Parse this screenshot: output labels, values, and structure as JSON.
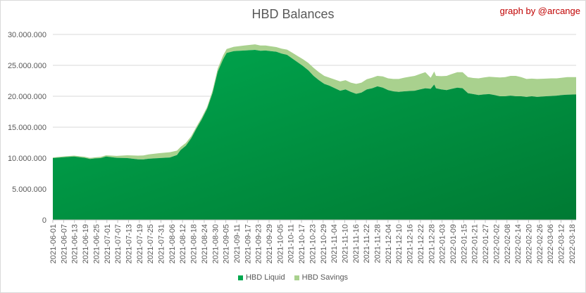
{
  "chart_data": {
    "type": "area",
    "stacked": true,
    "title": "HBD Balances",
    "credit": "graph by @arcange",
    "xlabel": "",
    "ylabel": "",
    "ylim": [
      0,
      30000000
    ],
    "y_ticks": [
      0,
      5000000,
      10000000,
      15000000,
      20000000,
      25000000,
      30000000
    ],
    "y_tick_labels": [
      "0",
      "5.000.000",
      "10.000.000",
      "15.000.000",
      "20.000.000",
      "25.000.000",
      "30.000.000"
    ],
    "x_start": "2021-06-01",
    "x_end": "2022-03-23",
    "x_tick_labels": [
      "2021-06-01",
      "2021-06-07",
      "2021-06-13",
      "2021-06-19",
      "2021-06-25",
      "2021-07-01",
      "2021-07-07",
      "2021-07-13",
      "2021-07-19",
      "2021-07-25",
      "2021-07-31",
      "2021-08-06",
      "2021-08-12",
      "2021-08-18",
      "2021-08-24",
      "2021-08-30",
      "2021-09-05",
      "2021-09-11",
      "2021-09-17",
      "2021-09-23",
      "2021-09-29",
      "2021-10-05",
      "2021-10-11",
      "2021-10-17",
      "2021-10-23",
      "2021-10-29",
      "2021-11-04",
      "2021-11-10",
      "2021-11-16",
      "2021-11-22",
      "2021-11-28",
      "2021-12-04",
      "2021-12-10",
      "2021-12-16",
      "2021-12-22",
      "2021-12-28",
      "2022-01-03",
      "2022-01-09",
      "2022-01-15",
      "2022-01-21",
      "2022-01-27",
      "2022-02-02",
      "2022-02-08",
      "2022-02-14",
      "2022-02-20",
      "2022-02-26",
      "2022-03-06",
      "2022-03-12",
      "2022-03-18"
    ],
    "grid": true,
    "legend_position": "bottom",
    "series": [
      {
        "name": "HBD Liquid",
        "color": "#00a84f",
        "color_dark": "#007a33",
        "points": [
          [
            "2021-06-01",
            10000000
          ],
          [
            "2021-06-07",
            10150000
          ],
          [
            "2021-06-13",
            10250000
          ],
          [
            "2021-06-19",
            10050000
          ],
          [
            "2021-06-22",
            9850000
          ],
          [
            "2021-06-25",
            9950000
          ],
          [
            "2021-06-28",
            10000000
          ],
          [
            "2021-07-01",
            10250000
          ],
          [
            "2021-07-07",
            10050000
          ],
          [
            "2021-07-13",
            10000000
          ],
          [
            "2021-07-19",
            9800000
          ],
          [
            "2021-07-22",
            9780000
          ],
          [
            "2021-07-25",
            9900000
          ],
          [
            "2021-07-31",
            10000000
          ],
          [
            "2021-08-06",
            10100000
          ],
          [
            "2021-08-10",
            10500000
          ],
          [
            "2021-08-12",
            11300000
          ],
          [
            "2021-08-15",
            12000000
          ],
          [
            "2021-08-18",
            13200000
          ],
          [
            "2021-08-21",
            14800000
          ],
          [
            "2021-08-24",
            16300000
          ],
          [
            "2021-08-27",
            18000000
          ],
          [
            "2021-08-30",
            20500000
          ],
          [
            "2021-09-02",
            24000000
          ],
          [
            "2021-09-05",
            26000000
          ],
          [
            "2021-09-07",
            27000000
          ],
          [
            "2021-09-11",
            27300000
          ],
          [
            "2021-09-17",
            27400000
          ],
          [
            "2021-09-23",
            27500000
          ],
          [
            "2021-09-26",
            27350000
          ],
          [
            "2021-09-29",
            27400000
          ],
          [
            "2021-10-05",
            27200000
          ],
          [
            "2021-10-08",
            26900000
          ],
          [
            "2021-10-11",
            26700000
          ],
          [
            "2021-10-14",
            26100000
          ],
          [
            "2021-10-17",
            25500000
          ],
          [
            "2021-10-20",
            24900000
          ],
          [
            "2021-10-23",
            24200000
          ],
          [
            "2021-10-26",
            23300000
          ],
          [
            "2021-10-29",
            22600000
          ],
          [
            "2021-11-01",
            22000000
          ],
          [
            "2021-11-04",
            21700000
          ],
          [
            "2021-11-07",
            21300000
          ],
          [
            "2021-11-10",
            20900000
          ],
          [
            "2021-11-13",
            21100000
          ],
          [
            "2021-11-16",
            20700000
          ],
          [
            "2021-11-19",
            20400000
          ],
          [
            "2021-11-22",
            20600000
          ],
          [
            "2021-11-25",
            21100000
          ],
          [
            "2021-11-28",
            21300000
          ],
          [
            "2021-12-01",
            21600000
          ],
          [
            "2021-12-04",
            21400000
          ],
          [
            "2021-12-07",
            21000000
          ],
          [
            "2021-12-10",
            20800000
          ],
          [
            "2021-12-13",
            20700000
          ],
          [
            "2021-12-16",
            20800000
          ],
          [
            "2021-12-19",
            20850000
          ],
          [
            "2021-12-22",
            20900000
          ],
          [
            "2021-12-25",
            21100000
          ],
          [
            "2021-12-28",
            21300000
          ],
          [
            "2021-12-31",
            21200000
          ],
          [
            "2022-01-02",
            21900000
          ],
          [
            "2022-01-03",
            21300000
          ],
          [
            "2022-01-06",
            21100000
          ],
          [
            "2022-01-09",
            21000000
          ],
          [
            "2022-01-12",
            21200000
          ],
          [
            "2022-01-15",
            21400000
          ],
          [
            "2022-01-18",
            21300000
          ],
          [
            "2022-01-21",
            20500000
          ],
          [
            "2022-01-24",
            20350000
          ],
          [
            "2022-01-27",
            20200000
          ],
          [
            "2022-01-30",
            20300000
          ],
          [
            "2022-02-02",
            20350000
          ],
          [
            "2022-02-05",
            20200000
          ],
          [
            "2022-02-08",
            20000000
          ],
          [
            "2022-02-11",
            20000000
          ],
          [
            "2022-02-14",
            20100000
          ],
          [
            "2022-02-17",
            20000000
          ],
          [
            "2022-02-20",
            20000000
          ],
          [
            "2022-02-23",
            19900000
          ],
          [
            "2022-02-26",
            20000000
          ],
          [
            "2022-03-01",
            19900000
          ],
          [
            "2022-03-06",
            20000000
          ],
          [
            "2022-03-09",
            20050000
          ],
          [
            "2022-03-12",
            20100000
          ],
          [
            "2022-03-15",
            20200000
          ],
          [
            "2022-03-18",
            20250000
          ],
          [
            "2022-03-23",
            20300000
          ]
        ]
      },
      {
        "name": "HBD Savings",
        "color": "#a9d18e",
        "points": [
          [
            "2021-06-01",
            100000
          ],
          [
            "2021-06-07",
            120000
          ],
          [
            "2021-06-13",
            150000
          ],
          [
            "2021-06-19",
            170000
          ],
          [
            "2021-06-22",
            170000
          ],
          [
            "2021-06-25",
            180000
          ],
          [
            "2021-06-28",
            190000
          ],
          [
            "2021-07-01",
            200000
          ],
          [
            "2021-07-07",
            300000
          ],
          [
            "2021-07-13",
            450000
          ],
          [
            "2021-07-19",
            600000
          ],
          [
            "2021-07-22",
            650000
          ],
          [
            "2021-07-25",
            700000
          ],
          [
            "2021-07-31",
            800000
          ],
          [
            "2021-08-06",
            850000
          ],
          [
            "2021-08-10",
            700000
          ],
          [
            "2021-08-12",
            500000
          ],
          [
            "2021-08-15",
            450000
          ],
          [
            "2021-08-18",
            350000
          ],
          [
            "2021-08-21",
            300000
          ],
          [
            "2021-08-24",
            300000
          ],
          [
            "2021-08-27",
            300000
          ],
          [
            "2021-08-30",
            400000
          ],
          [
            "2021-09-02",
            500000
          ],
          [
            "2021-09-05",
            600000
          ],
          [
            "2021-09-07",
            650000
          ],
          [
            "2021-09-11",
            700000
          ],
          [
            "2021-09-17",
            800000
          ],
          [
            "2021-09-23",
            900000
          ],
          [
            "2021-09-26",
            850000
          ],
          [
            "2021-09-29",
            800000
          ],
          [
            "2021-10-05",
            750000
          ],
          [
            "2021-10-08",
            800000
          ],
          [
            "2021-10-11",
            850000
          ],
          [
            "2021-10-14",
            950000
          ],
          [
            "2021-10-17",
            1000000
          ],
          [
            "2021-10-20",
            1100000
          ],
          [
            "2021-10-23",
            1200000
          ],
          [
            "2021-10-26",
            1300000
          ],
          [
            "2021-10-29",
            1300000
          ],
          [
            "2021-11-01",
            1300000
          ],
          [
            "2021-11-04",
            1300000
          ],
          [
            "2021-11-07",
            1400000
          ],
          [
            "2021-11-10",
            1500000
          ],
          [
            "2021-11-13",
            1500000
          ],
          [
            "2021-11-16",
            1500000
          ],
          [
            "2021-11-19",
            1600000
          ],
          [
            "2021-11-22",
            1600000
          ],
          [
            "2021-11-25",
            1650000
          ],
          [
            "2021-11-28",
            1700000
          ],
          [
            "2021-12-01",
            1700000
          ],
          [
            "2021-12-04",
            1800000
          ],
          [
            "2021-12-07",
            1900000
          ],
          [
            "2021-12-10",
            2000000
          ],
          [
            "2021-12-13",
            2100000
          ],
          [
            "2021-12-16",
            2200000
          ],
          [
            "2021-12-19",
            2300000
          ],
          [
            "2021-12-22",
            2400000
          ],
          [
            "2021-12-25",
            2500000
          ],
          [
            "2021-12-28",
            2600000
          ],
          [
            "2021-12-31",
            1800000
          ],
          [
            "2022-01-02",
            2100000
          ],
          [
            "2022-01-03",
            2000000
          ],
          [
            "2022-01-06",
            2150000
          ],
          [
            "2022-01-09",
            2300000
          ],
          [
            "2022-01-12",
            2400000
          ],
          [
            "2022-01-15",
            2500000
          ],
          [
            "2022-01-18",
            2600000
          ],
          [
            "2022-01-21",
            2600000
          ],
          [
            "2022-01-24",
            2600000
          ],
          [
            "2022-01-27",
            2700000
          ],
          [
            "2022-01-30",
            2750000
          ],
          [
            "2022-02-02",
            2800000
          ],
          [
            "2022-02-05",
            2900000
          ],
          [
            "2022-02-08",
            3050000
          ],
          [
            "2022-02-11",
            3100000
          ],
          [
            "2022-02-14",
            3200000
          ],
          [
            "2022-02-17",
            3300000
          ],
          [
            "2022-02-20",
            3100000
          ],
          [
            "2022-02-23",
            2900000
          ],
          [
            "2022-02-26",
            2850000
          ],
          [
            "2022-03-01",
            2900000
          ],
          [
            "2022-03-06",
            2850000
          ],
          [
            "2022-03-09",
            2850000
          ],
          [
            "2022-03-12",
            2800000
          ],
          [
            "2022-03-15",
            2800000
          ],
          [
            "2022-03-18",
            2850000
          ],
          [
            "2022-03-23",
            2800000
          ]
        ]
      }
    ]
  }
}
